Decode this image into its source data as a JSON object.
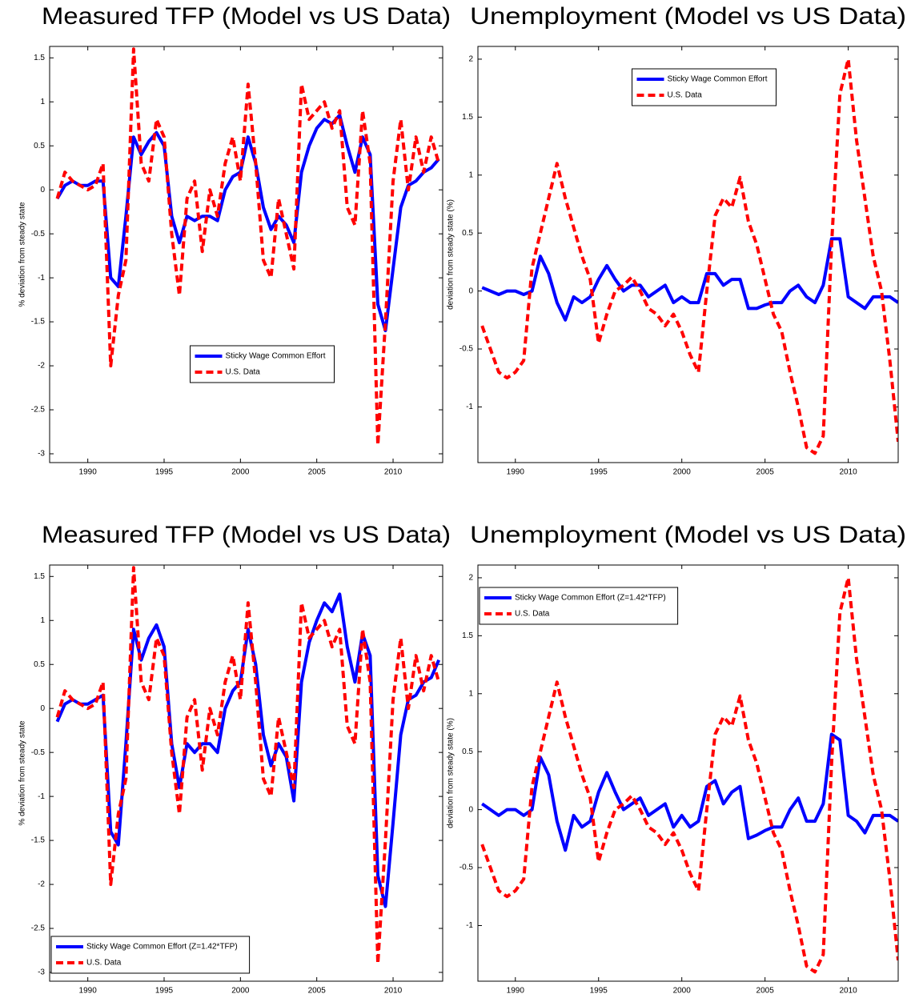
{
  "chart_data": [
    {
      "type": "line",
      "title": "Measured TFP (Model vs US Data)",
      "ylabel": "% deviation from steady state",
      "x": [
        1988,
        1988.5,
        1989,
        1989.5,
        1990,
        1990.5,
        1991,
        1991.5,
        1992,
        1992.5,
        1993,
        1993.5,
        1994,
        1994.5,
        1995,
        1995.5,
        1996,
        1996.5,
        1997,
        1997.5,
        1998,
        1998.5,
        1999,
        1999.5,
        2000,
        2000.5,
        2001,
        2001.5,
        2002,
        2002.5,
        2003,
        2003.5,
        2004,
        2004.5,
        2005,
        2005.5,
        2006,
        2006.5,
        2007,
        2007.5,
        2008,
        2008.5,
        2009,
        2009.5,
        2010,
        2010.5,
        2011,
        2011.5,
        2012,
        2012.5,
        2013
      ],
      "xlim": [
        1987.5,
        2013.25
      ],
      "xticks": [
        1990,
        1995,
        2000,
        2005,
        2010
      ],
      "ylim": [
        -3.1,
        1.63
      ],
      "yticks": [
        -3,
        -2.5,
        -2,
        -1.5,
        -1,
        -0.5,
        0,
        0.5,
        1,
        1.5
      ],
      "legend": "lower center",
      "series": [
        {
          "name": "Sticky Wage Common Effort",
          "color": "#0000ff",
          "style": "solid",
          "values": [
            -0.1,
            0.05,
            0.1,
            0.05,
            0.05,
            0.1,
            0.1,
            -1.0,
            -1.1,
            -0.3,
            0.6,
            0.4,
            0.55,
            0.65,
            0.5,
            -0.3,
            -0.6,
            -0.3,
            -0.35,
            -0.3,
            -0.3,
            -0.35,
            0.0,
            0.15,
            0.2,
            0.6,
            0.3,
            -0.2,
            -0.45,
            -0.3,
            -0.4,
            -0.6,
            0.2,
            0.5,
            0.7,
            0.8,
            0.75,
            0.85,
            0.5,
            0.2,
            0.6,
            0.4,
            -1.3,
            -1.6,
            -0.9,
            -0.2,
            0.05,
            0.1,
            0.2,
            0.25,
            0.35
          ]
        },
        {
          "name": "U.S. Data",
          "color": "#ff0000",
          "style": "dashed",
          "values": [
            -0.1,
            0.2,
            0.1,
            0.05,
            0.0,
            0.05,
            0.3,
            -2.0,
            -1.2,
            -0.8,
            1.6,
            0.3,
            0.1,
            0.8,
            0.6,
            -0.5,
            -1.2,
            -0.1,
            0.1,
            -0.7,
            0.0,
            -0.3,
            0.3,
            0.6,
            0.1,
            1.2,
            0.3,
            -0.8,
            -1.0,
            -0.1,
            -0.5,
            -0.9,
            1.2,
            0.8,
            0.9,
            1.0,
            0.7,
            0.9,
            -0.2,
            -0.4,
            0.9,
            0.3,
            -2.9,
            -1.5,
            0.1,
            0.8,
            0.0,
            0.6,
            0.2,
            0.6,
            0.3
          ]
        }
      ]
    },
    {
      "type": "line",
      "title": "Unemployment (Model vs US Data)",
      "ylabel": "deviation from steady state (%)",
      "x": [
        1988,
        1988.5,
        1989,
        1989.5,
        1990,
        1990.5,
        1991,
        1991.5,
        1992,
        1992.5,
        1993,
        1993.5,
        1994,
        1994.5,
        1995,
        1995.5,
        1996,
        1996.5,
        1997,
        1997.5,
        1998,
        1998.5,
        1999,
        1999.5,
        2000,
        2000.5,
        2001,
        2001.5,
        2002,
        2002.5,
        2003,
        2003.5,
        2004,
        2004.5,
        2005,
        2005.5,
        2006,
        2006.5,
        2007,
        2007.5,
        2008,
        2008.5,
        2009,
        2009.5,
        2010,
        2010.5,
        2011,
        2011.5,
        2012,
        2012.5,
        2013
      ],
      "xlim": [
        1987.75,
        2013
      ],
      "xticks": [
        1990,
        1995,
        2000,
        2005,
        2010
      ],
      "ylim": [
        -1.48,
        2.11
      ],
      "yticks": [
        -1,
        -0.5,
        0,
        0.5,
        1,
        1.5,
        2
      ],
      "legend": "upper center",
      "series": [
        {
          "name": "Sticky Wage Common Effort",
          "color": "#0000ff",
          "style": "solid",
          "values": [
            0.03,
            0.0,
            -0.03,
            0.0,
            0.0,
            -0.03,
            0.0,
            0.3,
            0.15,
            -0.1,
            -0.25,
            -0.05,
            -0.1,
            -0.05,
            0.1,
            0.22,
            0.1,
            0.0,
            0.05,
            0.05,
            -0.05,
            0.0,
            0.05,
            -0.1,
            -0.05,
            -0.1,
            -0.1,
            0.15,
            0.15,
            0.05,
            0.1,
            0.1,
            -0.15,
            -0.15,
            -0.12,
            -0.1,
            -0.1,
            0.0,
            0.05,
            -0.05,
            -0.1,
            0.05,
            0.45,
            0.45,
            -0.05,
            -0.1,
            -0.15,
            -0.05,
            -0.05,
            -0.05,
            -0.1
          ]
        },
        {
          "name": "U.S. Data",
          "color": "#ff0000",
          "style": "dashed",
          "values": [
            -0.3,
            -0.5,
            -0.7,
            -0.75,
            -0.7,
            -0.6,
            0.2,
            0.5,
            0.8,
            1.1,
            0.8,
            0.55,
            0.3,
            0.1,
            -0.45,
            -0.2,
            0.0,
            0.05,
            0.12,
            0.0,
            -0.15,
            -0.2,
            -0.3,
            -0.2,
            -0.35,
            -0.55,
            -0.7,
            0.0,
            0.65,
            0.8,
            0.72,
            0.98,
            0.6,
            0.4,
            0.1,
            -0.2,
            -0.35,
            -0.7,
            -1.0,
            -1.35,
            -1.4,
            -1.25,
            0.4,
            1.7,
            2.0,
            1.3,
            0.8,
            0.3,
            0.0,
            -0.6,
            -1.3
          ]
        }
      ]
    },
    {
      "type": "line",
      "title": "Measured TFP (Model vs US Data)",
      "ylabel": "% deviation from steady state",
      "x": [
        1988,
        1988.5,
        1989,
        1989.5,
        1990,
        1990.5,
        1991,
        1991.5,
        1992,
        1992.5,
        1993,
        1993.5,
        1994,
        1994.5,
        1995,
        1995.5,
        1996,
        1996.5,
        1997,
        1997.5,
        1998,
        1998.5,
        1999,
        1999.5,
        2000,
        2000.5,
        2001,
        2001.5,
        2002,
        2002.5,
        2003,
        2003.5,
        2004,
        2004.5,
        2005,
        2005.5,
        2006,
        2006.5,
        2007,
        2007.5,
        2008,
        2008.5,
        2009,
        2009.5,
        2010,
        2010.5,
        2011,
        2011.5,
        2012,
        2012.5,
        2013
      ],
      "xlim": [
        1987.5,
        2013.25
      ],
      "xticks": [
        1990,
        1995,
        2000,
        2005,
        2010
      ],
      "ylim": [
        -3.1,
        1.63
      ],
      "yticks": [
        -3,
        -2.5,
        -2,
        -1.5,
        -1,
        -0.5,
        0,
        0.5,
        1,
        1.5
      ],
      "legend": "lower left",
      "series": [
        {
          "name": "Sticky Wage Common Effort (Z=1.42*TFP)",
          "color": "#0000ff",
          "style": "solid",
          "values": [
            -0.15,
            0.05,
            0.1,
            0.05,
            0.05,
            0.1,
            0.15,
            -1.4,
            -1.55,
            -0.4,
            0.9,
            0.55,
            0.8,
            0.95,
            0.7,
            -0.4,
            -0.9,
            -0.4,
            -0.5,
            -0.4,
            -0.4,
            -0.5,
            0.0,
            0.2,
            0.3,
            0.9,
            0.5,
            -0.3,
            -0.65,
            -0.4,
            -0.55,
            -1.05,
            0.3,
            0.75,
            1.0,
            1.2,
            1.1,
            1.3,
            0.7,
            0.3,
            0.85,
            0.6,
            -1.9,
            -2.25,
            -1.3,
            -0.3,
            0.1,
            0.15,
            0.3,
            0.35,
            0.55
          ]
        },
        {
          "name": "U.S. Data",
          "color": "#ff0000",
          "style": "dashed",
          "values": [
            -0.1,
            0.2,
            0.1,
            0.05,
            0.0,
            0.05,
            0.3,
            -2.0,
            -1.2,
            -0.8,
            1.6,
            0.3,
            0.1,
            0.8,
            0.6,
            -0.5,
            -1.2,
            -0.1,
            0.1,
            -0.7,
            0.0,
            -0.3,
            0.3,
            0.6,
            0.1,
            1.2,
            0.3,
            -0.8,
            -1.0,
            -0.1,
            -0.5,
            -0.9,
            1.2,
            0.8,
            0.9,
            1.0,
            0.7,
            0.9,
            -0.2,
            -0.4,
            0.9,
            0.3,
            -2.9,
            -1.5,
            0.1,
            0.8,
            0.0,
            0.6,
            0.2,
            0.6,
            0.3
          ]
        }
      ]
    },
    {
      "type": "line",
      "title": "Unemployment (Model vs US Data)",
      "ylabel": "deviation from steady state (%)",
      "x": [
        1988,
        1988.5,
        1989,
        1989.5,
        1990,
        1990.5,
        1991,
        1991.5,
        1992,
        1992.5,
        1993,
        1993.5,
        1994,
        1994.5,
        1995,
        1995.5,
        1996,
        1996.5,
        1997,
        1997.5,
        1998,
        1998.5,
        1999,
        1999.5,
        2000,
        2000.5,
        2001,
        2001.5,
        2002,
        2002.5,
        2003,
        2003.5,
        2004,
        2004.5,
        2005,
        2005.5,
        2006,
        2006.5,
        2007,
        2007.5,
        2008,
        2008.5,
        2009,
        2009.5,
        2010,
        2010.5,
        2011,
        2011.5,
        2012,
        2012.5,
        2013
      ],
      "xlim": [
        1987.75,
        2013
      ],
      "xticks": [
        1990,
        1995,
        2000,
        2005,
        2010
      ],
      "ylim": [
        -1.48,
        2.11
      ],
      "yticks": [
        -1,
        -0.5,
        0,
        0.5,
        1,
        1.5,
        2
      ],
      "legend": "upper left",
      "series": [
        {
          "name": "Sticky Wage Common Effort (Z=1.42*TFP)",
          "color": "#0000ff",
          "style": "solid",
          "values": [
            0.05,
            0.0,
            -0.05,
            0.0,
            0.0,
            -0.05,
            0.0,
            0.45,
            0.3,
            -0.1,
            -0.35,
            -0.05,
            -0.15,
            -0.1,
            0.15,
            0.32,
            0.15,
            0.0,
            0.05,
            0.1,
            -0.05,
            0.0,
            0.05,
            -0.15,
            -0.05,
            -0.15,
            -0.1,
            0.2,
            0.25,
            0.05,
            0.15,
            0.2,
            -0.25,
            -0.22,
            -0.18,
            -0.15,
            -0.15,
            0.0,
            0.1,
            -0.1,
            -0.1,
            0.05,
            0.65,
            0.6,
            -0.05,
            -0.1,
            -0.2,
            -0.05,
            -0.05,
            -0.05,
            -0.1
          ]
        },
        {
          "name": "U.S. Data",
          "color": "#ff0000",
          "style": "dashed",
          "values": [
            -0.3,
            -0.5,
            -0.7,
            -0.75,
            -0.7,
            -0.6,
            0.2,
            0.5,
            0.8,
            1.1,
            0.8,
            0.55,
            0.3,
            0.1,
            -0.45,
            -0.2,
            0.0,
            0.05,
            0.12,
            0.0,
            -0.15,
            -0.2,
            -0.3,
            -0.2,
            -0.35,
            -0.55,
            -0.7,
            0.0,
            0.65,
            0.8,
            0.72,
            0.98,
            0.6,
            0.4,
            0.1,
            -0.2,
            -0.35,
            -0.7,
            -1.0,
            -1.35,
            -1.4,
            -1.25,
            0.4,
            1.7,
            2.0,
            1.3,
            0.8,
            0.3,
            0.0,
            -0.6,
            -1.3
          ]
        }
      ]
    }
  ]
}
